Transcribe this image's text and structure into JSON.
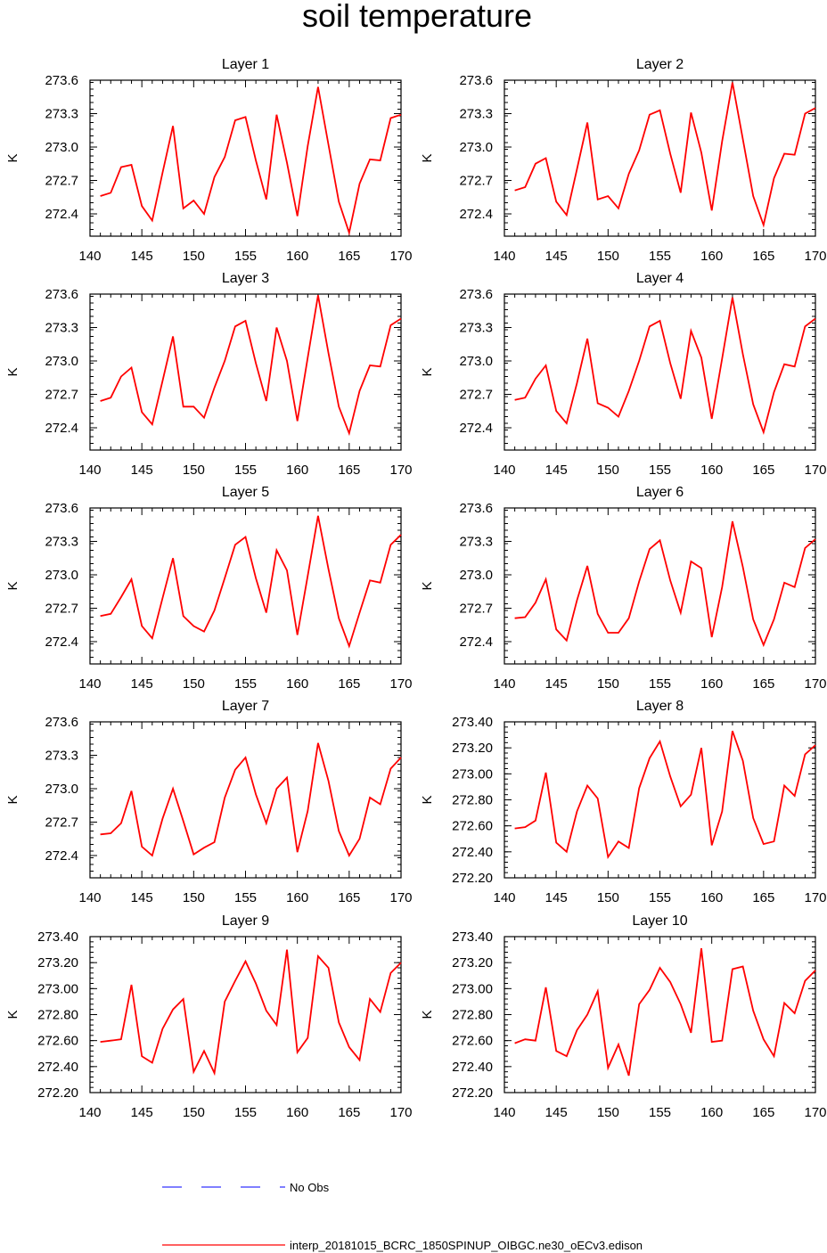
{
  "title": "soil temperature",
  "legend": {
    "items": [
      {
        "label": "No Obs",
        "color": "#3333ff",
        "style": "dashed"
      },
      {
        "label": "interp_20181015_BCRC_1850SPINUP_OIBGC.ne30_oECv3.edison",
        "color": "#ff0000",
        "style": "solid"
      }
    ]
  },
  "chart_data": [
    {
      "type": "line",
      "title": "Layer 1",
      "ylabel": "K",
      "xlim": [
        140,
        170
      ],
      "ylim": [
        272.2,
        273.6
      ],
      "xticks": [
        "140",
        "145",
        "150",
        "155",
        "160",
        "165",
        "170"
      ],
      "yticks": [
        "272.4",
        "272.7",
        "273.0",
        "273.3",
        "273.6"
      ],
      "series": [
        {
          "color": "#ff0000",
          "x": [
            141,
            142,
            143,
            144,
            145,
            146,
            147,
            148,
            149,
            150,
            151,
            152,
            153,
            154,
            155,
            156,
            157,
            158,
            159,
            160,
            161,
            162,
            163,
            164,
            165,
            166,
            167,
            168,
            169,
            170
          ],
          "values": [
            272.56,
            272.59,
            272.82,
            272.84,
            272.47,
            272.34,
            272.77,
            273.19,
            272.45,
            272.52,
            272.4,
            272.73,
            272.91,
            273.24,
            273.27,
            272.88,
            272.53,
            273.29,
            272.86,
            272.38,
            273.01,
            273.54,
            273.02,
            272.51,
            272.23,
            272.67,
            272.89,
            272.88,
            273.26,
            273.29
          ]
        }
      ]
    },
    {
      "type": "line",
      "title": "Layer 2",
      "ylabel": "K",
      "xlim": [
        140,
        170
      ],
      "ylim": [
        272.2,
        273.6
      ],
      "xticks": [
        "140",
        "145",
        "150",
        "155",
        "160",
        "165",
        "170"
      ],
      "yticks": [
        "272.4",
        "272.7",
        "273.0",
        "273.3",
        "273.6"
      ],
      "series": [
        {
          "color": "#ff0000",
          "x": [
            141,
            142,
            143,
            144,
            145,
            146,
            147,
            148,
            149,
            150,
            151,
            152,
            153,
            154,
            155,
            156,
            157,
            158,
            159,
            160,
            161,
            162,
            163,
            164,
            165,
            166,
            167,
            168,
            169,
            170
          ],
          "values": [
            272.61,
            272.64,
            272.85,
            272.9,
            272.51,
            272.39,
            272.8,
            273.22,
            272.53,
            272.56,
            272.45,
            272.76,
            272.97,
            273.29,
            273.33,
            272.94,
            272.59,
            273.31,
            272.95,
            272.43,
            273.05,
            273.58,
            273.07,
            272.56,
            272.3,
            272.72,
            272.94,
            272.93,
            273.3,
            273.35
          ]
        }
      ]
    },
    {
      "type": "line",
      "title": "Layer 3",
      "ylabel": "K",
      "xlim": [
        140,
        170
      ],
      "ylim": [
        272.2,
        273.6
      ],
      "xticks": [
        "140",
        "145",
        "150",
        "155",
        "160",
        "165",
        "170"
      ],
      "yticks": [
        "272.4",
        "272.7",
        "273.0",
        "273.3",
        "273.6"
      ],
      "series": [
        {
          "color": "#ff0000",
          "x": [
            141,
            142,
            143,
            144,
            145,
            146,
            147,
            148,
            149,
            150,
            151,
            152,
            153,
            154,
            155,
            156,
            157,
            158,
            159,
            160,
            161,
            162,
            163,
            164,
            165,
            166,
            167,
            168,
            169,
            170
          ],
          "values": [
            272.64,
            272.67,
            272.86,
            272.94,
            272.54,
            272.43,
            272.82,
            273.22,
            272.59,
            272.59,
            272.49,
            272.76,
            273.0,
            273.31,
            273.36,
            272.98,
            272.64,
            273.3,
            273.0,
            272.46,
            273.03,
            273.59,
            273.07,
            272.59,
            272.35,
            272.73,
            272.96,
            272.95,
            273.32,
            273.38
          ]
        }
      ]
    },
    {
      "type": "line",
      "title": "Layer 4",
      "ylabel": "K",
      "xlim": [
        140,
        170
      ],
      "ylim": [
        272.2,
        273.6
      ],
      "xticks": [
        "140",
        "145",
        "150",
        "155",
        "160",
        "165",
        "170"
      ],
      "yticks": [
        "272.4",
        "272.7",
        "273.0",
        "273.3",
        "273.6"
      ],
      "series": [
        {
          "color": "#ff0000",
          "x": [
            141,
            142,
            143,
            144,
            145,
            146,
            147,
            148,
            149,
            150,
            151,
            152,
            153,
            154,
            155,
            156,
            157,
            158,
            159,
            160,
            161,
            162,
            163,
            164,
            165,
            166,
            167,
            168,
            169,
            170
          ],
          "values": [
            272.65,
            272.67,
            272.84,
            272.96,
            272.55,
            272.44,
            272.8,
            273.2,
            272.62,
            272.58,
            272.5,
            272.73,
            273.0,
            273.31,
            273.36,
            272.98,
            272.66,
            273.27,
            273.03,
            272.48,
            273.02,
            273.57,
            273.06,
            272.61,
            272.36,
            272.72,
            272.97,
            272.95,
            273.31,
            273.38
          ]
        }
      ]
    },
    {
      "type": "line",
      "title": "Layer 5",
      "ylabel": "K",
      "xlim": [
        140,
        170
      ],
      "ylim": [
        272.2,
        273.6
      ],
      "xticks": [
        "140",
        "145",
        "150",
        "155",
        "160",
        "165",
        "170"
      ],
      "yticks": [
        "272.4",
        "272.7",
        "273.0",
        "273.3",
        "273.6"
      ],
      "series": [
        {
          "color": "#ff0000",
          "x": [
            141,
            142,
            143,
            144,
            145,
            146,
            147,
            148,
            149,
            150,
            151,
            152,
            153,
            154,
            155,
            156,
            157,
            158,
            159,
            160,
            161,
            162,
            163,
            164,
            165,
            166,
            167,
            168,
            169,
            170
          ],
          "values": [
            272.63,
            272.65,
            272.8,
            272.96,
            272.54,
            272.43,
            272.79,
            273.15,
            272.63,
            272.54,
            272.49,
            272.68,
            272.97,
            273.27,
            273.34,
            272.97,
            272.66,
            273.22,
            273.04,
            272.46,
            272.99,
            273.53,
            273.05,
            272.61,
            272.36,
            272.66,
            272.95,
            272.93,
            273.27,
            273.36
          ]
        }
      ]
    },
    {
      "type": "line",
      "title": "Layer 6",
      "ylabel": "K",
      "xlim": [
        140,
        170
      ],
      "ylim": [
        272.2,
        273.6
      ],
      "xticks": [
        "140",
        "145",
        "150",
        "155",
        "160",
        "165",
        "170"
      ],
      "yticks": [
        "272.4",
        "272.7",
        "273.0",
        "273.3",
        "273.6"
      ],
      "series": [
        {
          "color": "#ff0000",
          "x": [
            141,
            142,
            143,
            144,
            145,
            146,
            147,
            148,
            149,
            150,
            151,
            152,
            153,
            154,
            155,
            156,
            157,
            158,
            159,
            160,
            161,
            162,
            163,
            164,
            165,
            166,
            167,
            168,
            169,
            170
          ],
          "values": [
            272.61,
            272.62,
            272.75,
            272.96,
            272.51,
            272.41,
            272.77,
            273.08,
            272.65,
            272.48,
            272.48,
            272.61,
            272.94,
            273.23,
            273.31,
            272.95,
            272.66,
            273.12,
            273.06,
            272.44,
            272.89,
            273.48,
            273.07,
            272.6,
            272.37,
            272.6,
            272.93,
            272.89,
            273.24,
            273.32
          ]
        }
      ]
    },
    {
      "type": "line",
      "title": "Layer 7",
      "ylabel": "K",
      "xlim": [
        140,
        170
      ],
      "ylim": [
        272.2,
        273.6
      ],
      "xticks": [
        "140",
        "145",
        "150",
        "155",
        "160",
        "165",
        "170"
      ],
      "yticks": [
        "272.4",
        "272.7",
        "273.0",
        "273.3",
        "273.6"
      ],
      "series": [
        {
          "color": "#ff0000",
          "x": [
            141,
            142,
            143,
            144,
            145,
            146,
            147,
            148,
            149,
            150,
            151,
            152,
            153,
            154,
            155,
            156,
            157,
            158,
            159,
            160,
            161,
            162,
            163,
            164,
            165,
            166,
            167,
            168,
            169,
            170
          ],
          "values": [
            272.59,
            272.6,
            272.69,
            272.98,
            272.48,
            272.4,
            272.73,
            273.0,
            272.71,
            272.41,
            272.47,
            272.52,
            272.92,
            273.17,
            273.28,
            272.95,
            272.69,
            273.0,
            273.1,
            272.43,
            272.8,
            273.41,
            273.07,
            272.62,
            272.4,
            272.55,
            272.92,
            272.86,
            273.18,
            273.28
          ]
        }
      ]
    },
    {
      "type": "line",
      "title": "Layer 8",
      "ylabel": "K",
      "xlim": [
        140,
        170
      ],
      "ylim": [
        272.2,
        273.4
      ],
      "xticks": [
        "140",
        "145",
        "150",
        "155",
        "160",
        "165",
        "170"
      ],
      "yticks": [
        "272.20",
        "272.40",
        "272.60",
        "272.80",
        "273.00",
        "273.20",
        "273.40"
      ],
      "series": [
        {
          "color": "#ff0000",
          "x": [
            141,
            142,
            143,
            144,
            145,
            146,
            147,
            148,
            149,
            150,
            151,
            152,
            153,
            154,
            155,
            156,
            157,
            158,
            159,
            160,
            161,
            162,
            163,
            164,
            165,
            166,
            167,
            168,
            169,
            170
          ],
          "values": [
            272.58,
            272.59,
            272.64,
            273.01,
            272.47,
            272.4,
            272.71,
            272.91,
            272.81,
            272.36,
            272.48,
            272.43,
            272.89,
            273.12,
            273.25,
            272.98,
            272.75,
            272.84,
            273.2,
            272.45,
            272.71,
            273.33,
            273.1,
            272.66,
            272.46,
            272.48,
            272.91,
            272.83,
            273.15,
            273.22
          ]
        }
      ]
    },
    {
      "type": "line",
      "title": "Layer 9",
      "ylabel": "K",
      "xlim": [
        140,
        170
      ],
      "ylim": [
        272.2,
        273.4
      ],
      "xticks": [
        "140",
        "145",
        "150",
        "155",
        "160",
        "165",
        "170"
      ],
      "yticks": [
        "272.20",
        "272.40",
        "272.60",
        "272.80",
        "273.00",
        "273.20",
        "273.40"
      ],
      "series": [
        {
          "color": "#ff0000",
          "x": [
            141,
            142,
            143,
            144,
            145,
            146,
            147,
            148,
            149,
            150,
            151,
            152,
            153,
            154,
            155,
            156,
            157,
            158,
            159,
            160,
            161,
            162,
            163,
            164,
            165,
            166,
            167,
            168,
            169,
            170
          ],
          "values": [
            272.59,
            272.6,
            272.61,
            273.03,
            272.48,
            272.43,
            272.69,
            272.84,
            272.92,
            272.36,
            272.52,
            272.35,
            272.9,
            273.06,
            273.21,
            273.04,
            272.83,
            272.72,
            273.3,
            272.51,
            272.62,
            273.25,
            273.16,
            272.74,
            272.55,
            272.45,
            272.92,
            272.82,
            273.12,
            273.2
          ]
        }
      ]
    },
    {
      "type": "line",
      "title": "Layer 10",
      "ylabel": "K",
      "xlim": [
        140,
        170
      ],
      "ylim": [
        272.2,
        273.4
      ],
      "xticks": [
        "140",
        "145",
        "150",
        "155",
        "160",
        "165",
        "170"
      ],
      "yticks": [
        "272.20",
        "272.40",
        "272.60",
        "272.80",
        "273.00",
        "273.20",
        "273.40"
      ],
      "series": [
        {
          "color": "#ff0000",
          "x": [
            141,
            142,
            143,
            144,
            145,
            146,
            147,
            148,
            149,
            150,
            151,
            152,
            153,
            154,
            155,
            156,
            157,
            158,
            159,
            160,
            161,
            162,
            163,
            164,
            165,
            166,
            167,
            168,
            169,
            170
          ],
          "values": [
            272.58,
            272.61,
            272.6,
            273.01,
            272.52,
            272.48,
            272.68,
            272.8,
            272.98,
            272.39,
            272.57,
            272.33,
            272.88,
            272.99,
            273.16,
            273.05,
            272.88,
            272.66,
            273.31,
            272.59,
            272.6,
            273.15,
            273.17,
            272.83,
            272.61,
            272.48,
            272.89,
            272.81,
            273.06,
            273.14
          ]
        }
      ]
    }
  ]
}
